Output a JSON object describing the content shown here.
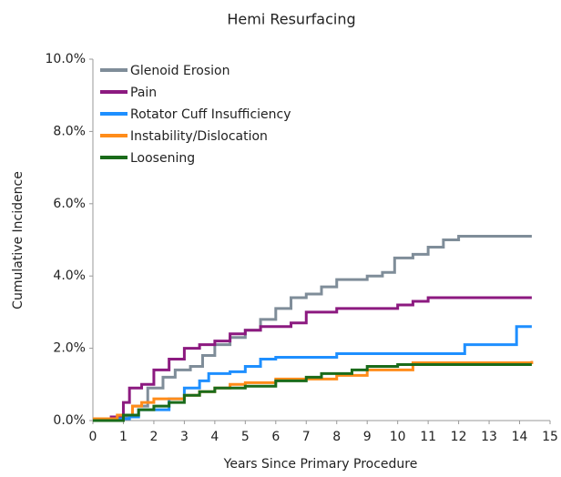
{
  "chart_data": {
    "type": "line",
    "step": "post",
    "title": "Hemi Resurfacing",
    "xlabel": "Years Since Primary Procedure",
    "ylabel": "Cumulative Incidence",
    "xlim": [
      0,
      15
    ],
    "xticks": [
      0,
      1,
      2,
      3,
      4,
      5,
      6,
      7,
      8,
      9,
      10,
      11,
      12,
      13,
      14,
      15
    ],
    "ylim": [
      0,
      10
    ],
    "yticks": [
      {
        "value": 0,
        "label": "0.0%"
      },
      {
        "value": 2,
        "label": "2.0%"
      },
      {
        "value": 4,
        "label": "4.0%"
      },
      {
        "value": 6,
        "label": "6.0%"
      },
      {
        "value": 8,
        "label": "8.0%"
      },
      {
        "value": 10,
        "label": "10.0%"
      }
    ],
    "legend": "top-left",
    "grid": false,
    "series": [
      {
        "name": "Glenoid Erosion",
        "color": "#7f8d99",
        "x": [
          0,
          1.0,
          1.3,
          1.8,
          2.3,
          2.7,
          3.2,
          3.6,
          4.0,
          4.5,
          5.0,
          5.5,
          6.0,
          6.5,
          7.0,
          7.5,
          8.0,
          9.0,
          9.5,
          9.9,
          10.5,
          11.0,
          11.5,
          12.0,
          14.4
        ],
        "values": [
          0,
          0.1,
          0.4,
          0.9,
          1.2,
          1.4,
          1.5,
          1.8,
          2.1,
          2.3,
          2.5,
          2.8,
          3.1,
          3.4,
          3.5,
          3.7,
          3.9,
          4.0,
          4.1,
          4.5,
          4.6,
          4.8,
          5.0,
          5.1,
          5.1
        ]
      },
      {
        "name": "Pain",
        "color": "#8c1a80",
        "x": [
          0,
          0.6,
          1.0,
          1.2,
          1.6,
          2.0,
          2.5,
          3.0,
          3.5,
          4.0,
          4.5,
          5.0,
          5.5,
          6.5,
          7.0,
          8.0,
          10.0,
          10.5,
          11.0,
          14.4
        ],
        "values": [
          0,
          0.1,
          0.5,
          0.9,
          1.0,
          1.4,
          1.7,
          2.0,
          2.1,
          2.2,
          2.4,
          2.5,
          2.6,
          2.7,
          3.0,
          3.1,
          3.2,
          3.3,
          3.4,
          3.4
        ]
      },
      {
        "name": "Rotator Cuff Insufficiency",
        "color": "#1e8fff",
        "x": [
          0,
          0.8,
          1.2,
          1.5,
          2.5,
          3.0,
          3.5,
          3.8,
          4.5,
          5.0,
          5.5,
          6.0,
          8.0,
          12.2,
          13.9,
          14.4
        ],
        "values": [
          0,
          0.05,
          0.1,
          0.3,
          0.6,
          0.9,
          1.1,
          1.3,
          1.35,
          1.5,
          1.7,
          1.75,
          1.85,
          2.1,
          2.6,
          2.6
        ]
      },
      {
        "name": "Instability/Dislocation",
        "color": "#ff8c1a",
        "x": [
          0,
          0.8,
          1.3,
          1.6,
          2.0,
          3.0,
          3.5,
          4.0,
          4.5,
          5.0,
          6.0,
          8.0,
          9.0,
          10.5,
          14.4
        ],
        "values": [
          0.05,
          0.15,
          0.4,
          0.5,
          0.6,
          0.7,
          0.8,
          0.9,
          1.0,
          1.05,
          1.15,
          1.25,
          1.4,
          1.6,
          1.65
        ]
      },
      {
        "name": "Loosening",
        "color": "#1a6b1a",
        "x": [
          0,
          1.0,
          1.5,
          2.0,
          2.5,
          3.0,
          3.5,
          4.0,
          5.0,
          6.0,
          7.0,
          7.5,
          8.5,
          9.0,
          10.0,
          14.4
        ],
        "values": [
          0,
          0.15,
          0.3,
          0.4,
          0.5,
          0.7,
          0.8,
          0.9,
          0.95,
          1.1,
          1.2,
          1.3,
          1.4,
          1.5,
          1.55,
          1.55
        ]
      }
    ]
  }
}
